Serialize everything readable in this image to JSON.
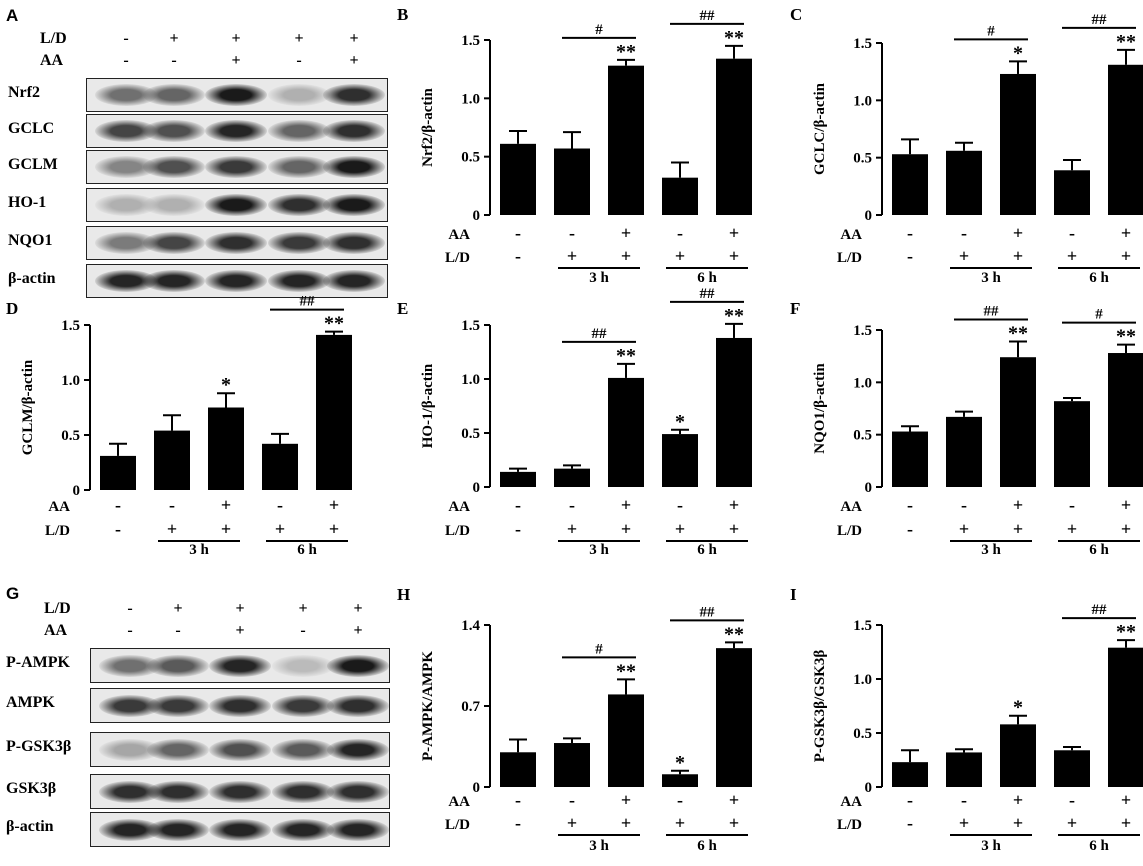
{
  "panels": {
    "A": {
      "letter": "A",
      "treatments": [
        {
          "label": "L/D",
          "signs": [
            "-",
            "+",
            "+",
            "+",
            "+"
          ]
        },
        {
          "label": "AA",
          "signs": [
            "-",
            "-",
            "+",
            "-",
            "+"
          ]
        }
      ],
      "rows": [
        {
          "label": "Nrf2",
          "intensity": [
            0.55,
            0.6,
            0.95,
            0.25,
            0.85
          ]
        },
        {
          "label": "GCLC",
          "intensity": [
            0.75,
            0.7,
            0.9,
            0.6,
            0.85
          ]
        },
        {
          "label": "GCLM",
          "intensity": [
            0.45,
            0.7,
            0.8,
            0.6,
            0.95
          ]
        },
        {
          "label": "HO-1",
          "intensity": [
            0.25,
            0.25,
            0.95,
            0.85,
            0.95
          ]
        },
        {
          "label": "NQO1",
          "intensity": [
            0.5,
            0.75,
            0.85,
            0.8,
            0.85
          ]
        },
        {
          "label": "β-actin",
          "intensity": [
            0.9,
            0.9,
            0.9,
            0.9,
            0.9
          ]
        }
      ]
    },
    "G": {
      "letter": "G",
      "treatments": [
        {
          "label": "L/D",
          "signs": [
            "-",
            "+",
            "+",
            "+",
            "+"
          ]
        },
        {
          "label": "AA",
          "signs": [
            "-",
            "-",
            "+",
            "-",
            "+"
          ]
        }
      ],
      "rows": [
        {
          "label": "P-AMPK",
          "intensity": [
            0.55,
            0.65,
            0.9,
            0.2,
            0.95
          ]
        },
        {
          "label": "AMPK",
          "intensity": [
            0.8,
            0.8,
            0.85,
            0.8,
            0.85
          ]
        },
        {
          "label": "P-GSK3β",
          "intensity": [
            0.3,
            0.6,
            0.7,
            0.65,
            0.9
          ]
        },
        {
          "label": "GSK3β",
          "intensity": [
            0.85,
            0.85,
            0.85,
            0.85,
            0.85
          ]
        },
        {
          "label": "β-actin",
          "intensity": [
            0.9,
            0.9,
            0.9,
            0.9,
            0.9
          ]
        }
      ]
    }
  },
  "chart_data": [
    {
      "type": "bar",
      "letter": "B",
      "ylabel": "Nrf2/β-actin",
      "ylim": [
        0,
        1.5
      ],
      "ticks": [
        "0",
        "0.5",
        "1.0",
        "1.5"
      ],
      "values": [
        0.61,
        0.57,
        1.28,
        0.32,
        1.34
      ],
      "errors": [
        0.11,
        0.14,
        0.05,
        0.13,
        0.11
      ],
      "stars": [
        "",
        "",
        "**",
        "",
        "**"
      ],
      "hash": [
        "#",
        "##"
      ],
      "aa": [
        "-",
        "-",
        "+",
        "-",
        "+"
      ],
      "ld": [
        "-",
        "+",
        "+",
        "+",
        "+"
      ],
      "groups": [
        "3 h",
        "6 h"
      ],
      "rowlabels": [
        "AA",
        "L/D"
      ]
    },
    {
      "type": "bar",
      "letter": "C",
      "ylabel": "GCLC/β-actin",
      "ylim": [
        0,
        1.5
      ],
      "ticks": [
        "0",
        "0.5",
        "1.0",
        "1.5"
      ],
      "values": [
        0.53,
        0.56,
        1.23,
        0.39,
        1.31
      ],
      "errors": [
        0.13,
        0.07,
        0.11,
        0.09,
        0.13
      ],
      "stars": [
        "",
        "",
        "*",
        "",
        "**"
      ],
      "hash": [
        "#",
        "##"
      ],
      "aa": [
        "-",
        "-",
        "+",
        "-",
        "+"
      ],
      "ld": [
        "-",
        "+",
        "+",
        "+",
        "+"
      ],
      "groups": [
        "3 h",
        "6 h"
      ],
      "rowlabels": [
        "AA",
        "L/D"
      ]
    },
    {
      "type": "bar",
      "letter": "D",
      "ylabel": "GCLM/β-actin",
      "ylim": [
        0,
        1.5
      ],
      "ticks": [
        "0",
        "0.5",
        "1.0",
        "1.5"
      ],
      "values": [
        0.31,
        0.54,
        0.75,
        0.42,
        1.41
      ],
      "errors": [
        0.11,
        0.14,
        0.13,
        0.09,
        0.03
      ],
      "stars": [
        "",
        "",
        "*",
        "",
        "**"
      ],
      "hash": [
        "",
        "##"
      ],
      "aa": [
        "-",
        "-",
        "+",
        "-",
        "+"
      ],
      "ld": [
        "-",
        "+",
        "+",
        "+",
        "+"
      ],
      "groups": [
        "3 h",
        "6 h"
      ],
      "rowlabels": [
        "AA",
        "L/D"
      ]
    },
    {
      "type": "bar",
      "letter": "E",
      "ylabel": "HO-1/β-actin",
      "ylim": [
        0,
        1.5
      ],
      "ticks": [
        "0",
        "0.5",
        "1.0",
        "1.5"
      ],
      "values": [
        0.14,
        0.17,
        1.01,
        0.49,
        1.38
      ],
      "errors": [
        0.03,
        0.03,
        0.13,
        0.04,
        0.13
      ],
      "stars": [
        "",
        "",
        "**",
        "*",
        "**"
      ],
      "hash": [
        "##",
        "##"
      ],
      "aa": [
        "-",
        "-",
        "+",
        "-",
        "+"
      ],
      "ld": [
        "-",
        "+",
        "+",
        "+",
        "+"
      ],
      "groups": [
        "3 h",
        "6 h"
      ],
      "rowlabels": [
        "AA",
        "L/D"
      ]
    },
    {
      "type": "bar",
      "letter": "F",
      "ylabel": "NQO1/β-actin",
      "ylim": [
        0,
        1.5
      ],
      "ticks": [
        "0",
        "0.5",
        "1.0",
        "1.5"
      ],
      "values": [
        0.53,
        0.67,
        1.24,
        0.82,
        1.28
      ],
      "errors": [
        0.05,
        0.05,
        0.15,
        0.03,
        0.08
      ],
      "stars": [
        "",
        "",
        "**",
        "",
        "**"
      ],
      "hash": [
        "##",
        "#"
      ],
      "aa": [
        "-",
        "-",
        "+",
        "-",
        "+"
      ],
      "ld": [
        "-",
        "+",
        "+",
        "+",
        "+"
      ],
      "groups": [
        "3 h",
        "6 h"
      ],
      "rowlabels": [
        "AA",
        "L/D"
      ]
    },
    {
      "type": "bar",
      "letter": "H",
      "ylabel": "P-AMPK/AMPK",
      "ylim": [
        0,
        1.4
      ],
      "ticks": [
        "0",
        "0.7",
        "1.4"
      ],
      "values": [
        0.3,
        0.38,
        0.8,
        0.11,
        1.2
      ],
      "errors": [
        0.11,
        0.04,
        0.13,
        0.03,
        0.05
      ],
      "stars": [
        "",
        "",
        "**",
        "*",
        "**"
      ],
      "hash": [
        "#",
        "##"
      ],
      "aa": [
        "-",
        "-",
        "+",
        "-",
        "+"
      ],
      "ld": [
        "-",
        "+",
        "+",
        "+",
        "+"
      ],
      "groups": [
        "3 h",
        "6 h"
      ],
      "rowlabels": [
        "AA",
        "L/D"
      ]
    },
    {
      "type": "bar",
      "letter": "I",
      "ylabel": "P-GSK3β/GSK3β",
      "ylim": [
        0,
        1.5
      ],
      "ticks": [
        "0",
        "0.5",
        "1.0",
        "1.5"
      ],
      "values": [
        0.23,
        0.32,
        0.58,
        0.34,
        1.29
      ],
      "errors": [
        0.11,
        0.03,
        0.08,
        0.03,
        0.07
      ],
      "stars": [
        "",
        "",
        "*",
        "",
        "**"
      ],
      "hash": [
        "",
        "##"
      ],
      "aa": [
        "-",
        "-",
        "+",
        "-",
        "+"
      ],
      "ld": [
        "-",
        "+",
        "+",
        "+",
        "+"
      ],
      "groups": [
        "3 h",
        "6 h"
      ],
      "rowlabels": [
        "AA",
        "L/D"
      ]
    }
  ]
}
